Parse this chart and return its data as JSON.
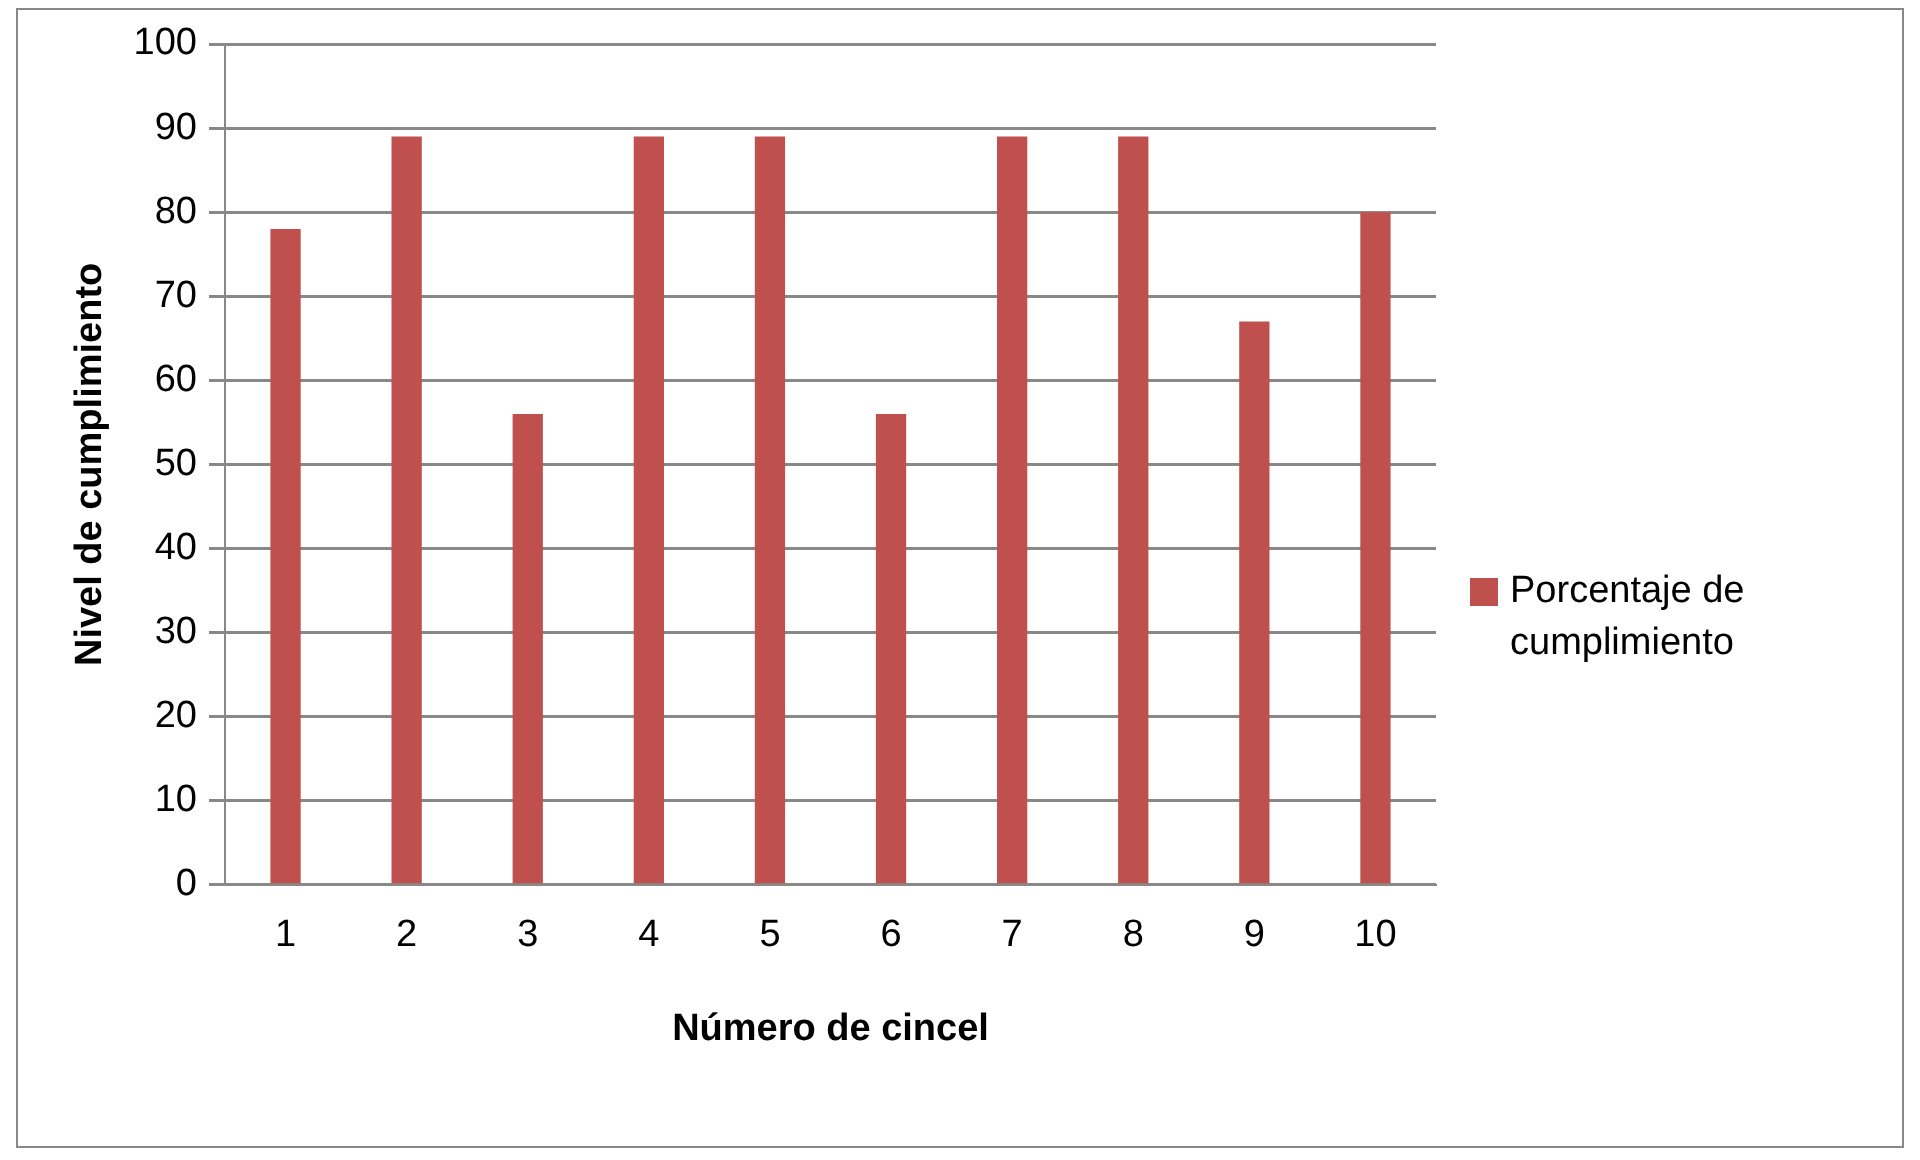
{
  "chart_data": {
    "type": "bar",
    "xlabel": "Número de cincel",
    "ylabel": "Nivel de cumplimiento",
    "categories": [
      "1",
      "2",
      "3",
      "4",
      "5",
      "6",
      "7",
      "8",
      "9",
      "10"
    ],
    "series": [
      {
        "name": "Porcentaje de cumplimiento",
        "color": "#c0504d",
        "values": [
          78,
          89,
          56,
          89,
          89,
          56,
          89,
          89,
          67,
          80
        ]
      }
    ],
    "ylim": [
      0,
      100
    ],
    "yticks": [
      0,
      10,
      20,
      30,
      40,
      50,
      60,
      70,
      80,
      90,
      100
    ],
    "grid": "y",
    "legend": "right"
  }
}
